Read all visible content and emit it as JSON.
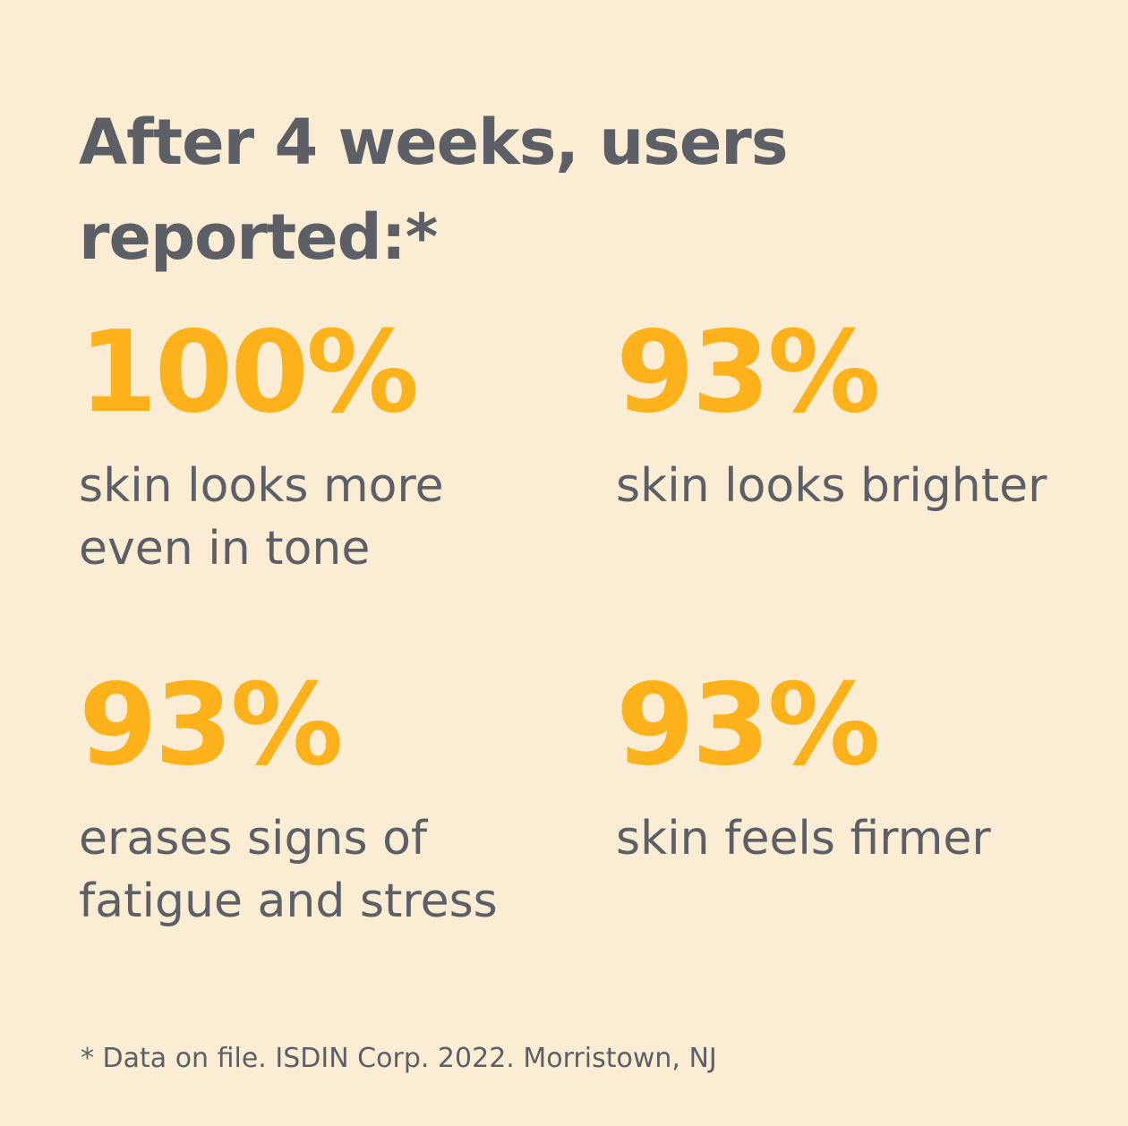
{
  "colors": {
    "background": "#FBEDD4",
    "text": "#5C5F66",
    "accent": "#FDB21C"
  },
  "headline": "After 4 weeks, users reported:*",
  "stats": [
    {
      "value": "100%",
      "description": "skin looks more even in tone"
    },
    {
      "value": "93%",
      "description": "skin looks brighter"
    },
    {
      "value": "93%",
      "description": "erases signs of fatigue and stress"
    },
    {
      "value": "93%",
      "description": "skin feels firmer"
    }
  ],
  "footnote": "* Data on file. ISDIN Corp. 2022. Morristown, NJ"
}
